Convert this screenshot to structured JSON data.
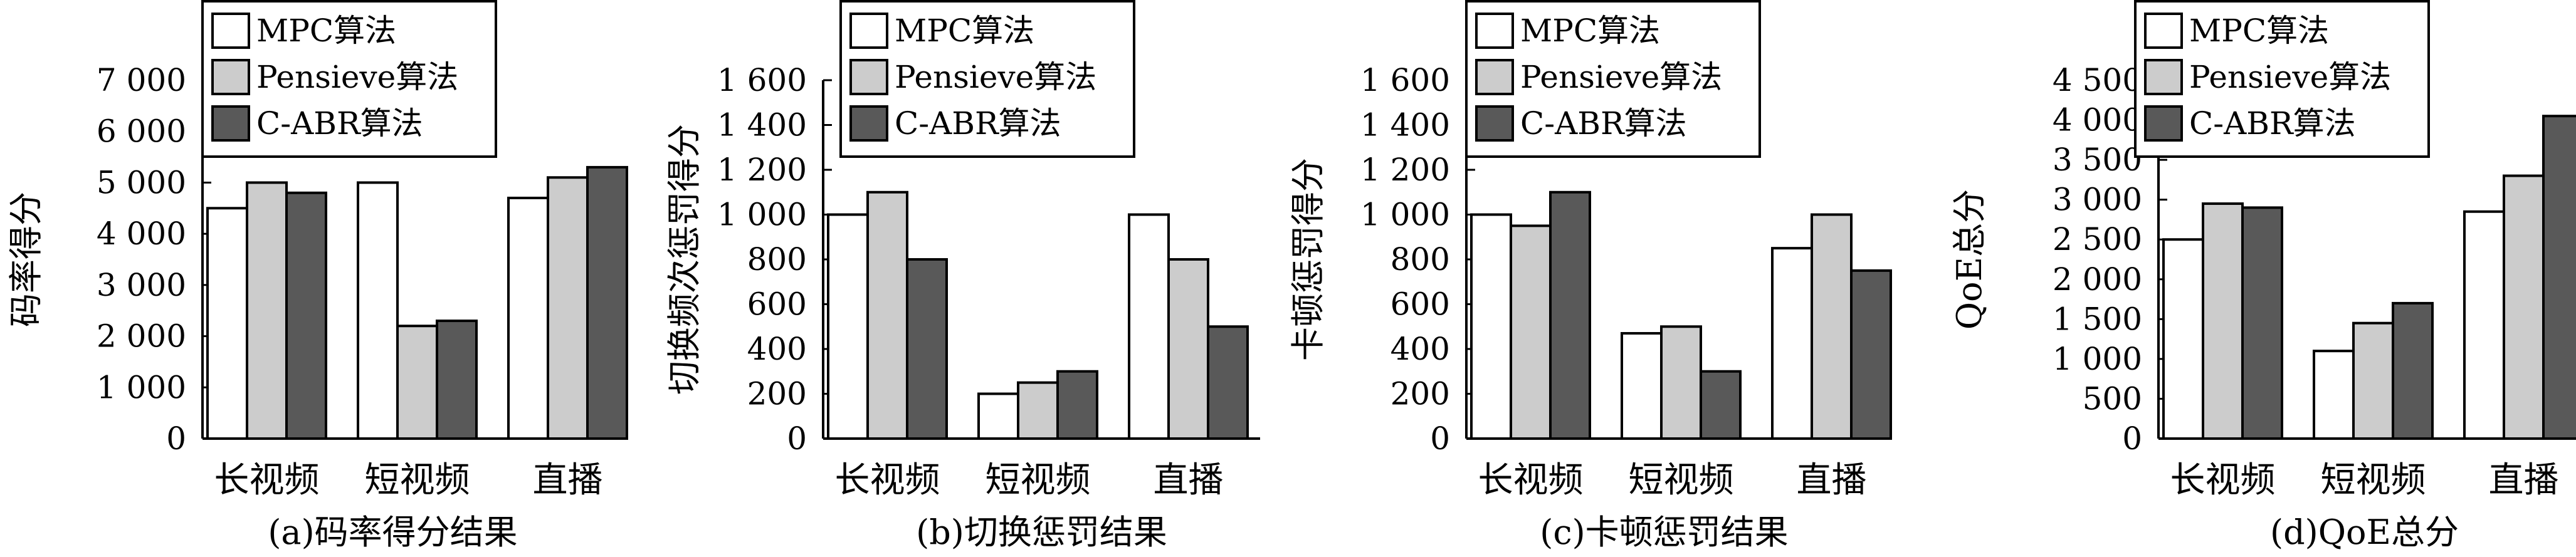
{
  "colors": {
    "mpc": "#ffffff",
    "pensieve": "#cccccc",
    "cabr": "#595959",
    "stroke": "#000000"
  },
  "chart_data": [
    {
      "type": "bar",
      "caption": "(a)码率得分结果",
      "ylabel": "码率得分",
      "categories": [
        "长视频",
        "短视频",
        "直播"
      ],
      "ylim": [
        0,
        7000
      ],
      "yticks": [
        0,
        1000,
        2000,
        3000,
        4000,
        5000,
        6000,
        7000
      ],
      "ytick_labels": [
        "0",
        "1 000",
        "2 000",
        "3 000",
        "4 000",
        "5 000",
        "6 000",
        "7 000"
      ],
      "legend_position": "top-left",
      "series": [
        {
          "name": "MPC算法",
          "values": [
            4500,
            5000,
            4700
          ]
        },
        {
          "name": "Pensieve算法",
          "values": [
            5000,
            2200,
            5100
          ]
        },
        {
          "name": "C-ABR算法",
          "values": [
            4800,
            2300,
            5300
          ]
        }
      ]
    },
    {
      "type": "bar",
      "caption": "(b)切换惩罚结果",
      "ylabel": "切换频次惩罚得分",
      "categories": [
        "长视频",
        "短视频",
        "直播"
      ],
      "ylim": [
        0,
        1600
      ],
      "yticks": [
        0,
        200,
        400,
        600,
        800,
        1000,
        1200,
        1400,
        1600
      ],
      "ytick_labels": [
        "0",
        "200",
        "400",
        "600",
        "800",
        "1 000",
        "1 200",
        "1 400",
        "1 600"
      ],
      "legend_position": "top-left",
      "series": [
        {
          "name": "MPC算法",
          "values": [
            1000,
            200,
            1000
          ]
        },
        {
          "name": "Pensieve算法",
          "values": [
            1100,
            250,
            800
          ]
        },
        {
          "name": "C-ABR算法",
          "values": [
            800,
            300,
            500
          ]
        }
      ]
    },
    {
      "type": "bar",
      "caption": "(c)卡顿惩罚结果",
      "ylabel": "卡顿惩罚得分",
      "categories": [
        "长视频",
        "短视频",
        "直播"
      ],
      "ylim": [
        0,
        1600
      ],
      "yticks": [
        0,
        200,
        400,
        600,
        800,
        1000,
        1200,
        1400,
        1600
      ],
      "ytick_labels": [
        "0",
        "200",
        "400",
        "600",
        "800",
        "1 000",
        "1 200",
        "1 400",
        "1 600"
      ],
      "legend_position": "top-left",
      "series": [
        {
          "name": "MPC算法",
          "values": [
            1000,
            470,
            850
          ]
        },
        {
          "name": "Pensieve算法",
          "values": [
            950,
            500,
            1000
          ]
        },
        {
          "name": "C-ABR算法",
          "values": [
            1100,
            300,
            750
          ]
        }
      ]
    },
    {
      "type": "bar",
      "caption": "(d)QoE总分",
      "ylabel": "QoE总分",
      "categories": [
        "长视频",
        "短视频",
        "直播"
      ],
      "ylim": [
        0,
        4500
      ],
      "yticks": [
        0,
        500,
        1000,
        1500,
        2000,
        2500,
        3000,
        3500,
        4000,
        4500
      ],
      "ytick_labels": [
        "0",
        "500",
        "1 000",
        "1 500",
        "2 000",
        "2 500",
        "3 000",
        "3 500",
        "4 000",
        "4 500"
      ],
      "legend_position": "top-left",
      "series": [
        {
          "name": "MPC算法",
          "values": [
            2500,
            1100,
            2850
          ]
        },
        {
          "name": "Pensieve算法",
          "values": [
            2950,
            1450,
            3300
          ]
        },
        {
          "name": "C-ABR算法",
          "values": [
            2900,
            1700,
            4050
          ]
        }
      ]
    }
  ]
}
